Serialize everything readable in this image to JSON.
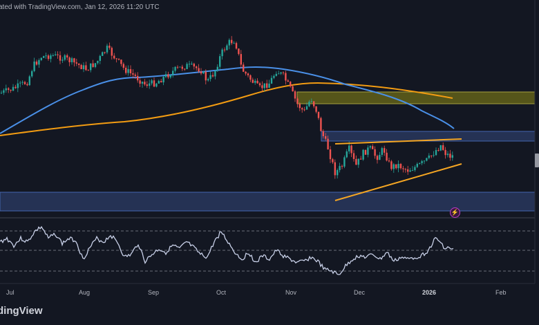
{
  "header": {
    "text": "ated with TradingView.com, Jan 12, 2026 11:20 UTC"
  },
  "brand": {
    "text": "dingView"
  },
  "alert_icon": {
    "glyph": "⚡"
  },
  "x_axis": {
    "labels": [
      {
        "key": "jul",
        "text": "Jul",
        "bold": false
      },
      {
        "key": "aug",
        "text": "Aug",
        "bold": false
      },
      {
        "key": "sep",
        "text": "Sep",
        "bold": false
      },
      {
        "key": "oct",
        "text": "Oct",
        "bold": false
      },
      {
        "key": "nov",
        "text": "Nov",
        "bold": false
      },
      {
        "key": "dec",
        "text": "Dec",
        "bold": false
      },
      {
        "key": "2026",
        "text": "2026",
        "bold": true
      },
      {
        "key": "feb",
        "text": "Feb",
        "bold": false
      }
    ]
  },
  "colors": {
    "background": "#131722",
    "up_candle": "#26a69a",
    "down_candle": "#ef5350",
    "ma_blue": "#4a90e8",
    "ma_orange": "#f39c12",
    "zone_yellow": "#6b6a1c",
    "zone_blue": "#2a3a5e",
    "trendline": "#f5a623",
    "rsi": "#c8d0e8"
  }
}
